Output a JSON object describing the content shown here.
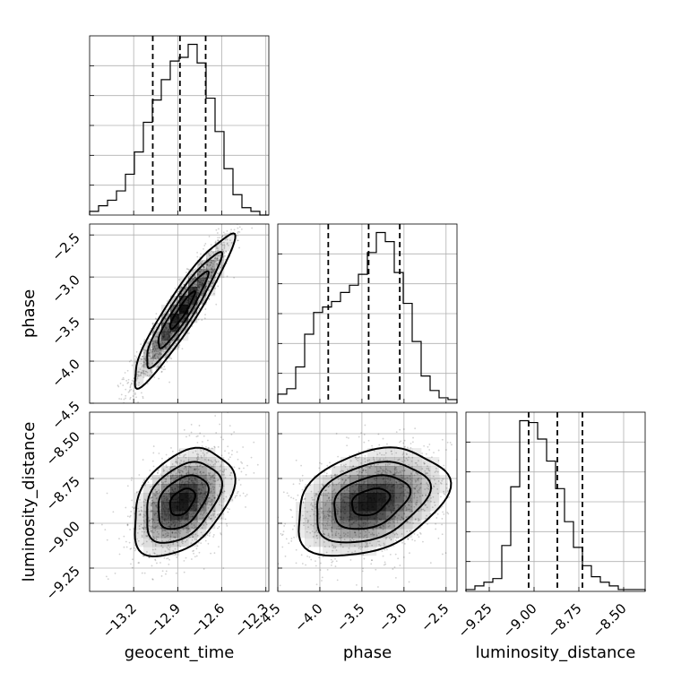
{
  "chart_data": {
    "type": "corner",
    "grid": true,
    "colors": {
      "lines": "#000000",
      "density": "#000000",
      "background": "#ffffff"
    },
    "parameters": [
      {
        "name": "geocent_time",
        "label": "geocent_time",
        "range": [
          -13.5,
          -12.28
        ],
        "ticks": [
          -13.2,
          -12.9,
          -12.6,
          -12.3
        ],
        "tick_labels": [
          "−13.2",
          "−12.9",
          "−12.6",
          "−12.3"
        ],
        "quantiles": [
          -13.07,
          -12.885,
          -12.71
        ],
        "hist_edges_start": -13.5,
        "hist_bin_width": 0.061,
        "hist_counts": [
          2,
          5,
          8,
          13,
          22,
          34,
          50,
          62,
          73,
          83,
          85,
          92,
          82,
          63,
          45,
          25,
          11,
          4,
          2,
          0
        ]
      },
      {
        "name": "phase",
        "label": "phase",
        "range": [
          -4.5,
          -2.37
        ],
        "ticks": [
          -4.5,
          -4.0,
          -3.5,
          -3.0,
          -2.5
        ],
        "tick_labels": [
          "−4.5",
          "−4.0",
          "−3.5",
          "−3.0",
          "−2.5"
        ],
        "quantiles": [
          -3.9,
          -3.42,
          -3.05
        ],
        "hist_edges_start": -4.5,
        "hist_bin_width": 0.1065,
        "hist_counts": [
          5,
          8,
          20,
          38,
          50,
          53,
          56,
          61,
          65,
          71,
          83,
          94,
          89,
          72,
          55,
          34,
          15,
          7,
          3,
          2
        ]
      },
      {
        "name": "luminosity_distance",
        "label": "luminosity_distance",
        "range": [
          -9.38,
          -8.38
        ],
        "ticks": [
          -9.25,
          -9.0,
          -8.75,
          -8.5
        ],
        "tick_labels": [
          "−9.25",
          "−9.00",
          "−8.75",
          "−8.50"
        ],
        "quantiles": [
          -9.03,
          -8.87,
          -8.73
        ],
        "hist_edges_start": -9.38,
        "hist_bin_width": 0.05,
        "hist_counts": [
          1,
          3,
          5,
          7,
          25,
          57,
          93,
          92,
          83,
          71,
          56,
          38,
          24,
          14,
          8,
          5,
          3,
          1,
          1,
          1
        ]
      }
    ],
    "pairs": [
      {
        "x": "geocent_time",
        "y": "phase",
        "mean": [
          -12.87,
          -3.4
        ],
        "std": [
          0.17,
          0.45
        ],
        "correlation": 0.93
      },
      {
        "x": "geocent_time",
        "y": "luminosity_distance",
        "mean": [
          -12.87,
          -8.88
        ],
        "std": [
          0.17,
          0.15
        ],
        "correlation": 0.4
      },
      {
        "x": "phase",
        "y": "luminosity_distance",
        "mean": [
          -3.4,
          -8.88
        ],
        "std": [
          0.45,
          0.15
        ],
        "correlation": 0.33
      }
    ]
  }
}
